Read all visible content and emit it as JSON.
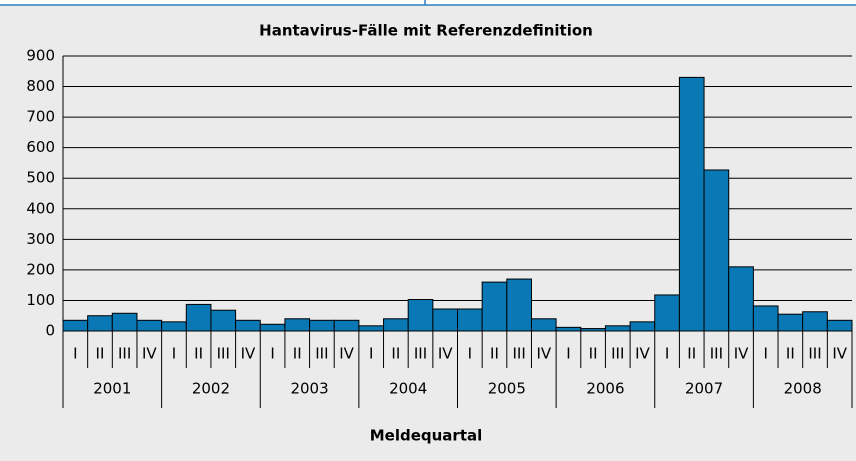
{
  "chart_data": {
    "type": "bar",
    "title": "Hantavirus-Fälle mit Referenzdefinition",
    "x_label": "Meldequartal",
    "categories": [
      "I",
      "II",
      "III",
      "IV",
      "I",
      "II",
      "III",
      "IV",
      "I",
      "II",
      "III",
      "IV",
      "I",
      "II",
      "III",
      "IV",
      "I",
      "II",
      "III",
      "IV",
      "I",
      "II",
      "III",
      "IV",
      "I",
      "II",
      "III",
      "IV",
      "I",
      "II",
      "III",
      "IV"
    ],
    "groups": [
      "2001",
      "2002",
      "2003",
      "2004",
      "2005",
      "2006",
      "2007",
      "2008"
    ],
    "values": [
      35,
      50,
      58,
      35,
      30,
      87,
      68,
      35,
      22,
      40,
      35,
      35,
      17,
      40,
      103,
      72,
      72,
      160,
      170,
      40,
      12,
      8,
      17,
      30,
      118,
      830,
      527,
      210,
      82,
      55,
      63,
      35
    ],
    "color": "#0a78b4",
    "ylim": [
      0,
      900
    ],
    "yticks": [
      0,
      100,
      200,
      300,
      400,
      500,
      600,
      700,
      800,
      900
    ],
    "grid": true
  }
}
